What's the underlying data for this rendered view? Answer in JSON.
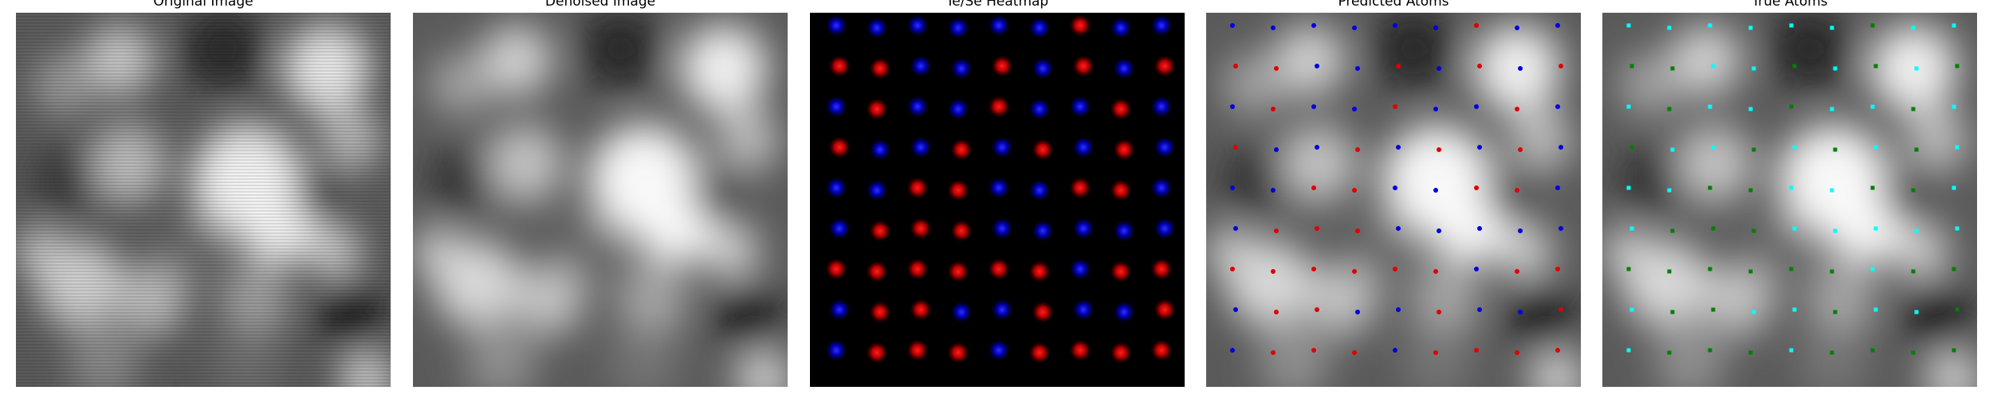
{
  "panels": [
    {
      "title": "Original Image"
    },
    {
      "title": "Denoised Image"
    },
    {
      "title": "Te/Se Heatmap"
    },
    {
      "title": "Predicted Atoms"
    },
    {
      "title": "True Atoms"
    }
  ],
  "colors": {
    "te": "#e00000",
    "se": "#0000e0",
    "true_te": "#00ffff",
    "true_se": "#008000",
    "heatmap_bg": "#000000"
  }
}
